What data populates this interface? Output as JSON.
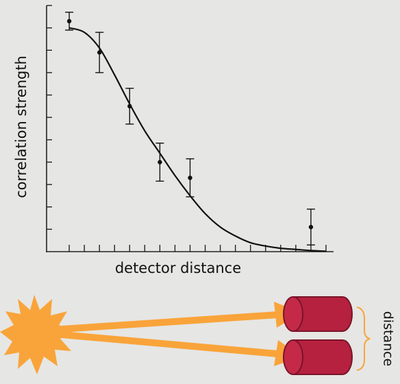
{
  "chart_data": {
    "type": "scatter",
    "x_label": "detector distance",
    "y_label": "correlation strength",
    "xlim": [
      -0.5,
      18.5
    ],
    "ylim": [
      0,
      11
    ],
    "xticks": [
      1,
      2,
      3,
      4,
      5,
      6,
      7,
      8,
      9,
      10,
      11,
      12,
      13,
      14,
      15,
      16,
      17,
      18
    ],
    "yticks": [
      1,
      2,
      3,
      4,
      5,
      6,
      7,
      8,
      9,
      10,
      11
    ],
    "series": [
      {
        "type": "scatter",
        "color": "#111111",
        "x": [
          1,
          3,
          5,
          7,
          9,
          17
        ],
        "values": [
          10.3,
          8.9,
          6.5,
          4.0,
          3.3,
          1.1
        ],
        "errors": [
          0.4,
          0.9,
          0.8,
          0.85,
          0.85,
          0.8
        ]
      },
      {
        "type": "line",
        "color": "#111111",
        "x": [
          1,
          2,
          3,
          4,
          5,
          6,
          7,
          8,
          9,
          10,
          11,
          12,
          13,
          14,
          15,
          16,
          17,
          18
        ],
        "values": [
          10.0,
          9.8,
          9.1,
          7.9,
          6.6,
          5.4,
          4.4,
          3.4,
          2.5,
          1.7,
          1.1,
          0.7,
          0.4,
          0.25,
          0.15,
          0.1,
          0.05,
          0.02
        ]
      }
    ]
  },
  "diagram": {
    "label": "distance"
  }
}
